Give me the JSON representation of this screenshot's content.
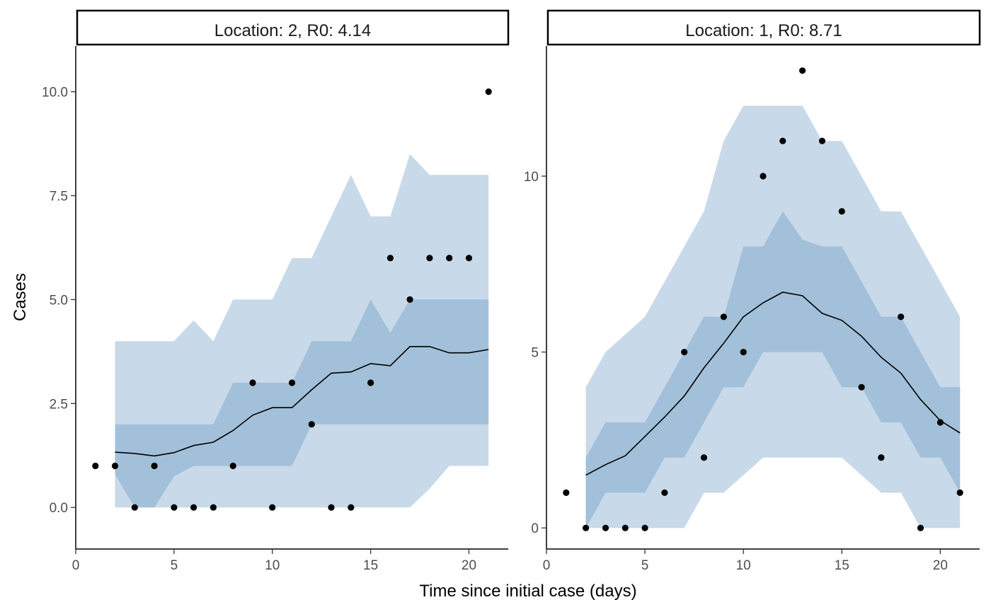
{
  "chart_data": {
    "type": "line",
    "xlabel": "Time since initial case (days)",
    "ylabel": "Cases",
    "colors": {
      "outer_band": "#c8d9e9",
      "inner_band": "#a2c0d9",
      "line": "#000000",
      "points": "#000000"
    },
    "panels": [
      {
        "title": "Location: 2, R0: 4.14",
        "xlim": [
          0,
          22
        ],
        "ylim": [
          -1,
          11.1
        ],
        "x_ticks": [
          0,
          5,
          10,
          15,
          20
        ],
        "x_tick_labels": [
          "0",
          "5",
          "10",
          "15",
          "20"
        ],
        "y_ticks": [
          0,
          2.5,
          5,
          7.5,
          10
        ],
        "y_tick_labels": [
          "0.0",
          "2.5",
          "5.0",
          "7.5",
          "10.0"
        ],
        "observed": {
          "x": [
            1,
            2,
            3,
            4,
            5,
            6,
            7,
            8,
            9,
            10,
            11,
            12,
            13,
            14,
            15,
            16,
            17,
            18,
            19,
            20,
            21
          ],
          "y": [
            1,
            1,
            0,
            1,
            0,
            0,
            0,
            1,
            3,
            0,
            3,
            2,
            0,
            0,
            3,
            6,
            5,
            6,
            6,
            6,
            10
          ]
        },
        "forecast": {
          "x": [
            2,
            3,
            4,
            5,
            6,
            7,
            8,
            9,
            10,
            11,
            12,
            13,
            14,
            15,
            16,
            17,
            18,
            19,
            20,
            21
          ],
          "median": [
            1.33,
            1.3,
            1.24,
            1.32,
            1.49,
            1.57,
            1.85,
            2.22,
            2.4,
            2.4,
            2.83,
            3.23,
            3.26,
            3.46,
            3.41,
            3.87,
            3.87,
            3.72,
            3.72,
            3.8
          ],
          "inner_lower": [
            0.8,
            0,
            0,
            0.75,
            1,
            1,
            1,
            1,
            1,
            1,
            2,
            2,
            2,
            2,
            2,
            2,
            2,
            2,
            2,
            2
          ],
          "inner_upper": [
            2,
            2,
            2,
            2,
            2,
            2,
            3,
            3,
            3,
            3,
            4,
            4,
            4,
            5,
            4.2,
            5,
            5,
            5,
            5,
            5
          ],
          "outer_lower": [
            0,
            0,
            0,
            0,
            0,
            0,
            0,
            0,
            0,
            0,
            0,
            0,
            0,
            0,
            0,
            0,
            0.45,
            1,
            1,
            1
          ],
          "outer_upper": [
            4,
            4,
            4,
            4,
            4.5,
            4,
            5,
            5,
            5,
            6,
            6,
            7,
            8,
            7,
            7,
            8.5,
            8,
            8,
            8,
            8
          ]
        }
      },
      {
        "title": "Location: 1, R0: 8.71",
        "xlim": [
          0,
          22
        ],
        "ylim": [
          -0.6,
          13.7
        ],
        "x_ticks": [
          0,
          5,
          10,
          15,
          20
        ],
        "x_tick_labels": [
          "0",
          "5",
          "10",
          "15",
          "20"
        ],
        "y_ticks": [
          0,
          5,
          10
        ],
        "y_tick_labels": [
          "0",
          "5",
          "10"
        ],
        "observed": {
          "x": [
            1,
            2,
            3,
            4,
            5,
            6,
            7,
            8,
            9,
            10,
            11,
            12,
            13,
            14,
            15,
            16,
            17,
            18,
            19,
            20,
            21
          ],
          "y": [
            1,
            0,
            0,
            0,
            0,
            1,
            5,
            2,
            6,
            5,
            10,
            11,
            13,
            11,
            9,
            4,
            2,
            6,
            0,
            3,
            1
          ]
        },
        "forecast": {
          "x": [
            2,
            3,
            4,
            5,
            6,
            7,
            8,
            9,
            10,
            11,
            12,
            13,
            14,
            15,
            16,
            17,
            18,
            19,
            20,
            21
          ],
          "median": [
            1.5,
            1.8,
            2.05,
            2.6,
            3.15,
            3.75,
            4.55,
            5.25,
            6.0,
            6.4,
            6.7,
            6.6,
            6.1,
            5.9,
            5.45,
            4.85,
            4.4,
            3.65,
            3.05,
            2.7
          ],
          "inner_lower": [
            0,
            1,
            1,
            1,
            2,
            2,
            3,
            4,
            4,
            5,
            5,
            5,
            5,
            4,
            4,
            3,
            3,
            2,
            2,
            1
          ],
          "inner_upper": [
            2,
            3,
            3,
            3,
            4,
            5,
            6,
            6,
            8,
            8,
            9,
            8.2,
            8,
            8,
            7,
            6,
            6,
            5,
            4,
            4
          ],
          "outer_lower": [
            0,
            0,
            0,
            0,
            0,
            0,
            1,
            1,
            1.5,
            2,
            2,
            2,
            2,
            2,
            1.5,
            1,
            1,
            0,
            0,
            0
          ],
          "outer_upper": [
            4,
            5,
            5.5,
            6,
            7,
            8,
            9,
            11,
            12,
            12,
            12,
            12,
            11,
            11,
            10,
            9,
            9,
            8,
            7,
            6
          ]
        }
      }
    ]
  }
}
